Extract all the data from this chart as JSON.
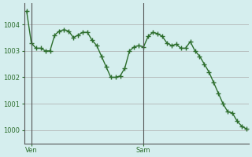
{
  "title": "",
  "background_color": "#d5eeee",
  "plot_bg_color": "#d5eeee",
  "grid_color": "#aaaaaa",
  "line_color": "#2d6e2d",
  "marker_color": "#2d6e2d",
  "ylim": [
    999.5,
    1004.8
  ],
  "yticks": [
    1000,
    1001,
    1002,
    1003,
    1004
  ],
  "xlabel_ven": "Ven",
  "xlabel_sam": "Sam",
  "ven_x": 0.0,
  "sam_x": 24.0,
  "x_values": [
    -1.0,
    0.0,
    1.0,
    2.0,
    3.0,
    4.0,
    5.0,
    6.0,
    7.0,
    8.0,
    9.0,
    10.0,
    11.0,
    12.0,
    13.0,
    14.0,
    15.0,
    16.0,
    17.0,
    18.0,
    19.0,
    20.0,
    21.0,
    22.0,
    23.0,
    24.0,
    25.0,
    26.0,
    27.0,
    28.0,
    29.0,
    30.0,
    31.0,
    32.0,
    33.0,
    34.0,
    35.0,
    36.0,
    37.0,
    38.0,
    39.0,
    40.0,
    41.0,
    42.0,
    43.0,
    44.0,
    45.0,
    46.0
  ],
  "y_values": [
    1004.5,
    1003.3,
    1003.1,
    1003.1,
    1003.0,
    1003.0,
    1003.6,
    1003.75,
    1003.8,
    1003.75,
    1003.5,
    1003.6,
    1003.7,
    1003.7,
    1003.4,
    1003.2,
    1002.8,
    1002.4,
    1002.0,
    1002.0,
    1002.05,
    1002.35,
    1003.0,
    1003.15,
    1003.2,
    1003.15,
    1003.55,
    1003.7,
    1003.65,
    1003.55,
    1003.3,
    1003.2,
    1003.25,
    1003.1,
    1003.1,
    1003.35,
    1003.0,
    1002.8,
    1002.5,
    1002.2,
    1001.8,
    1001.4,
    1001.0,
    1000.7,
    1000.65,
    1000.35,
    1000.15,
    1000.05
  ],
  "xlim": [
    -1.5,
    46.5
  ],
  "ven_line_x": 0.0,
  "sam_line_x": 24.0
}
